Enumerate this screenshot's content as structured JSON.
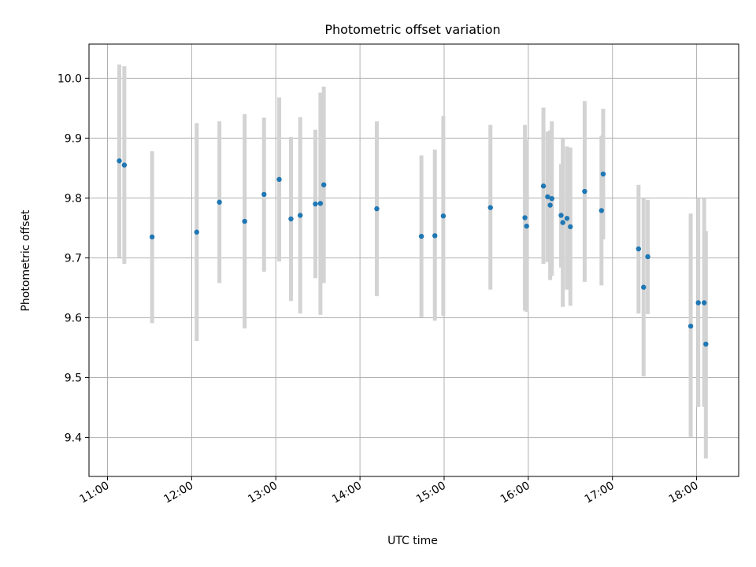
{
  "chart_data": {
    "type": "scatter",
    "title": "Photometric offset variation",
    "xlabel": "UTC time",
    "ylabel": "Photometric offset",
    "x_unit": "hours UTC",
    "xlim": [
      10.78,
      18.5
    ],
    "ylim": [
      9.335,
      10.057
    ],
    "x_ticks": [
      {
        "value": 11,
        "label": "11:00"
      },
      {
        "value": 12,
        "label": "12:00"
      },
      {
        "value": 13,
        "label": "13:00"
      },
      {
        "value": 14,
        "label": "14:00"
      },
      {
        "value": 15,
        "label": "15:00"
      },
      {
        "value": 16,
        "label": "16:00"
      },
      {
        "value": 17,
        "label": "17:00"
      },
      {
        "value": 18,
        "label": "18:00"
      }
    ],
    "y_ticks": [
      {
        "value": 9.4,
        "label": "9.4"
      },
      {
        "value": 9.5,
        "label": "9.5"
      },
      {
        "value": 9.6,
        "label": "9.6"
      },
      {
        "value": 9.7,
        "label": "9.7"
      },
      {
        "value": 9.8,
        "label": "9.8"
      },
      {
        "value": 9.9,
        "label": "9.9"
      },
      {
        "value": 10.0,
        "label": "10.0"
      }
    ],
    "grid": true,
    "marker_color": "#1f77b4",
    "errorbar_color": "#d3d3d3",
    "points": [
      {
        "x": 11.14,
        "y": 9.862,
        "ylow": 9.701,
        "yhigh": 10.023
      },
      {
        "x": 11.2,
        "y": 9.855,
        "ylow": 9.69,
        "yhigh": 10.02
      },
      {
        "x": 11.53,
        "y": 9.735,
        "ylow": 9.591,
        "yhigh": 9.878
      },
      {
        "x": 12.06,
        "y": 9.743,
        "ylow": 9.561,
        "yhigh": 9.925
      },
      {
        "x": 12.33,
        "y": 9.793,
        "ylow": 9.658,
        "yhigh": 9.928
      },
      {
        "x": 12.63,
        "y": 9.761,
        "ylow": 9.582,
        "yhigh": 9.94
      },
      {
        "x": 12.86,
        "y": 9.806,
        "ylow": 9.677,
        "yhigh": 9.934
      },
      {
        "x": 13.04,
        "y": 9.831,
        "ylow": 9.694,
        "yhigh": 9.968
      },
      {
        "x": 13.18,
        "y": 9.765,
        "ylow": 9.628,
        "yhigh": 9.902
      },
      {
        "x": 13.29,
        "y": 9.771,
        "ylow": 9.607,
        "yhigh": 9.935
      },
      {
        "x": 13.47,
        "y": 9.79,
        "ylow": 9.666,
        "yhigh": 9.914
      },
      {
        "x": 13.53,
        "y": 9.791,
        "ylow": 9.605,
        "yhigh": 9.976
      },
      {
        "x": 13.57,
        "y": 9.822,
        "ylow": 9.658,
        "yhigh": 9.986
      },
      {
        "x": 14.2,
        "y": 9.782,
        "ylow": 9.636,
        "yhigh": 9.928
      },
      {
        "x": 14.73,
        "y": 9.736,
        "ylow": 9.601,
        "yhigh": 9.871
      },
      {
        "x": 14.89,
        "y": 9.737,
        "ylow": 9.595,
        "yhigh": 9.881
      },
      {
        "x": 14.99,
        "y": 9.77,
        "ylow": 9.603,
        "yhigh": 9.937
      },
      {
        "x": 15.55,
        "y": 9.784,
        "ylow": 9.647,
        "yhigh": 9.922
      },
      {
        "x": 15.96,
        "y": 9.767,
        "ylow": 9.612,
        "yhigh": 9.922
      },
      {
        "x": 15.98,
        "y": 9.753,
        "ylow": 9.61,
        "yhigh": 9.897
      },
      {
        "x": 16.18,
        "y": 9.82,
        "ylow": 9.69,
        "yhigh": 9.951
      },
      {
        "x": 16.23,
        "y": 9.802,
        "ylow": 9.693,
        "yhigh": 9.911
      },
      {
        "x": 16.26,
        "y": 9.788,
        "ylow": 9.663,
        "yhigh": 9.913
      },
      {
        "x": 16.28,
        "y": 9.799,
        "ylow": 9.67,
        "yhigh": 9.928
      },
      {
        "x": 16.39,
        "y": 9.771,
        "ylow": 9.684,
        "yhigh": 9.857
      },
      {
        "x": 16.41,
        "y": 9.759,
        "ylow": 9.618,
        "yhigh": 9.9
      },
      {
        "x": 16.46,
        "y": 9.766,
        "ylow": 9.647,
        "yhigh": 9.886
      },
      {
        "x": 16.5,
        "y": 9.752,
        "ylow": 9.62,
        "yhigh": 9.884
      },
      {
        "x": 16.67,
        "y": 9.811,
        "ylow": 9.66,
        "yhigh": 9.962
      },
      {
        "x": 16.87,
        "y": 9.779,
        "ylow": 9.654,
        "yhigh": 9.904
      },
      {
        "x": 16.89,
        "y": 9.84,
        "ylow": 9.731,
        "yhigh": 9.949
      },
      {
        "x": 17.31,
        "y": 9.715,
        "ylow": 9.607,
        "yhigh": 9.822
      },
      {
        "x": 17.37,
        "y": 9.651,
        "ylow": 9.502,
        "yhigh": 9.8
      },
      {
        "x": 17.42,
        "y": 9.702,
        "ylow": 9.606,
        "yhigh": 9.797
      },
      {
        "x": 17.93,
        "y": 9.586,
        "ylow": 9.401,
        "yhigh": 9.774
      },
      {
        "x": 18.02,
        "y": 9.625,
        "ylow": 9.451,
        "yhigh": 9.799
      },
      {
        "x": 18.09,
        "y": 9.625,
        "ylow": 9.451,
        "yhigh": 9.799
      },
      {
        "x": 18.11,
        "y": 9.556,
        "ylow": 9.365,
        "yhigh": 9.745
      }
    ]
  }
}
